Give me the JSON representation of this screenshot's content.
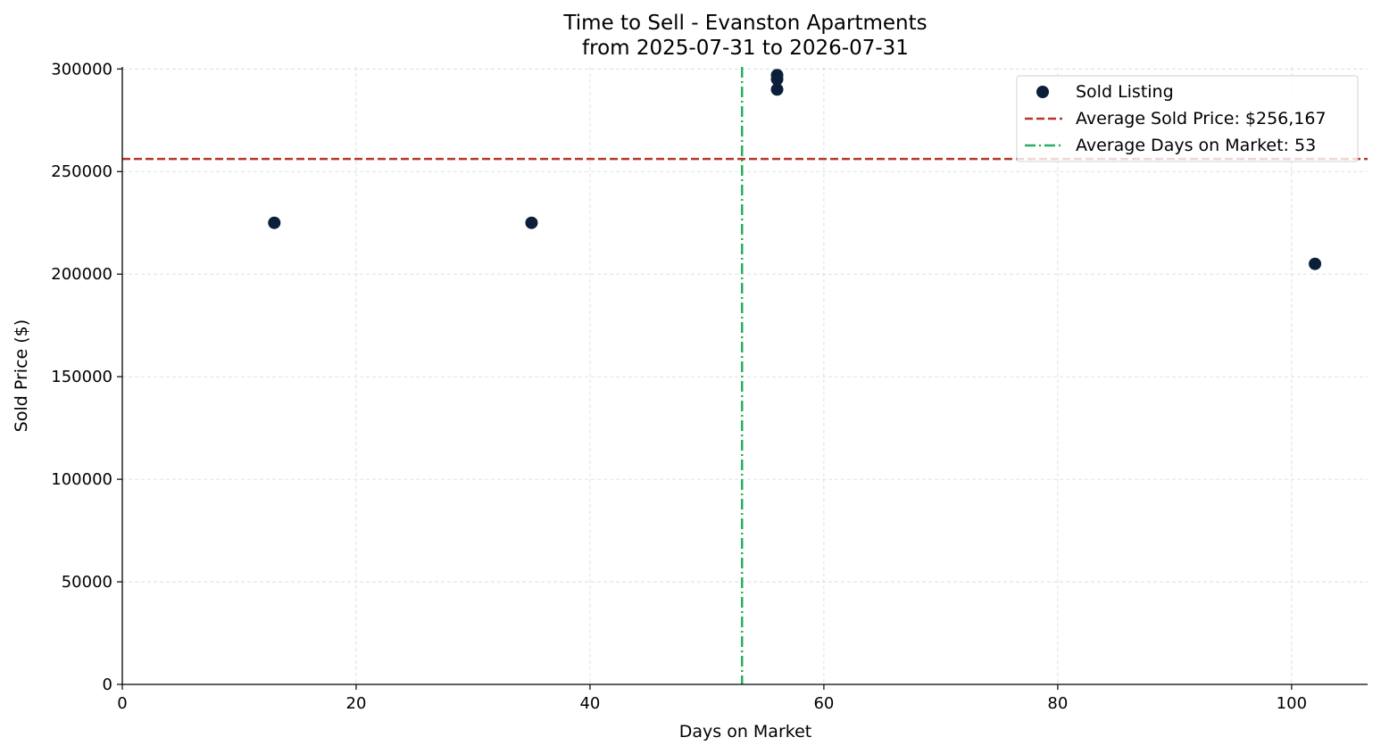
{
  "chart_data": {
    "type": "scatter",
    "title": "Time to Sell - Evanston Apartments",
    "subtitle": "from 2025-07-31 to 2026-07-31",
    "xlabel": "Days on Market",
    "ylabel": "Sold Price ($)",
    "xlim": [
      0,
      106.5
    ],
    "ylim": [
      0,
      301000
    ],
    "x_ticks": [
      0,
      20,
      40,
      60,
      80,
      100
    ],
    "y_ticks": [
      0,
      50000,
      100000,
      150000,
      200000,
      250000,
      300000
    ],
    "grid": true,
    "legend_position": "top-right",
    "series": [
      {
        "name": "Sold Listing",
        "color": "#0b1f3a",
        "points": [
          {
            "x": 13,
            "y": 225000
          },
          {
            "x": 35,
            "y": 225000
          },
          {
            "x": 56,
            "y": 297000
          },
          {
            "x": 56,
            "y": 295000
          },
          {
            "x": 56,
            "y": 290000
          },
          {
            "x": 102,
            "y": 205000
          }
        ]
      }
    ],
    "reference_lines": {
      "horizontal": {
        "name": "Average Sold Price: $256,167",
        "value": 256167,
        "color": "#b5382b",
        "style": "dashed"
      },
      "vertical": {
        "name": "Average Days on Market: 53",
        "value": 53,
        "color": "#27ae60",
        "style": "dashdot"
      }
    }
  }
}
